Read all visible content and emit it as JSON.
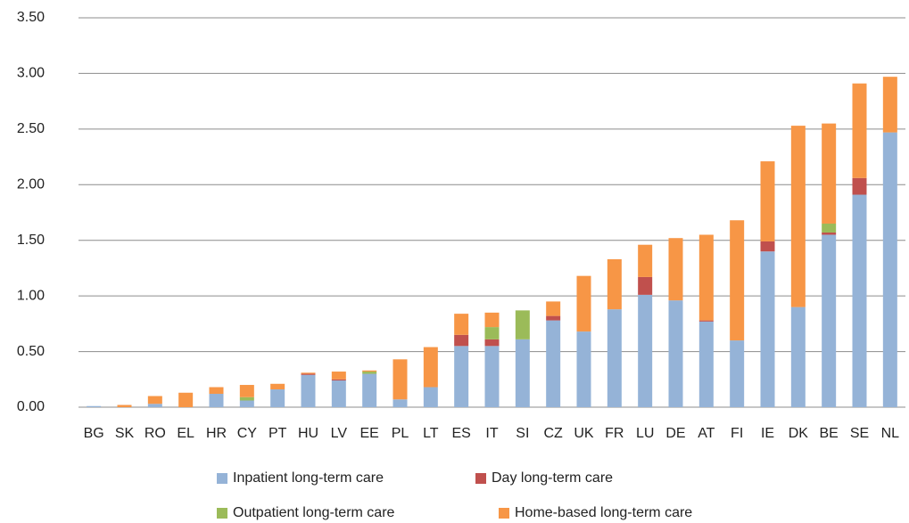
{
  "chart_data": {
    "type": "stacked_bar",
    "categories": [
      "BG",
      "SK",
      "RO",
      "EL",
      "HR",
      "CY",
      "PT",
      "HU",
      "LV",
      "EE",
      "PL",
      "LT",
      "ES",
      "IT",
      "SI",
      "CZ",
      "UK",
      "FR",
      "LU",
      "DE",
      "AT",
      "FI",
      "IE",
      "DK",
      "BE",
      "SE",
      "NL"
    ],
    "series": [
      {
        "name": "Inpatient long-term care",
        "color": "#95b3d7",
        "values": [
          0.01,
          0,
          0.03,
          0,
          0.12,
          0.06,
          0.16,
          0.29,
          0.24,
          0.3,
          0.07,
          0.18,
          0.55,
          0.55,
          0.61,
          0.78,
          0.68,
          0.88,
          1.01,
          0.96,
          0.77,
          0.6,
          1.4,
          0.9,
          1.55,
          1.91,
          2.47
        ]
      },
      {
        "name": "Day long-term care",
        "color": "#c0504d",
        "values": [
          0,
          0,
          0,
          0,
          0,
          0,
          0,
          0.01,
          0.01,
          0,
          0,
          0,
          0.1,
          0.06,
          0,
          0.04,
          0,
          0,
          0.16,
          0,
          0.01,
          0,
          0.09,
          0,
          0.02,
          0.15,
          0
        ]
      },
      {
        "name": "Outpatient long-term care",
        "color": "#9bbb59",
        "values": [
          0,
          0,
          0,
          0,
          0,
          0.03,
          0,
          0,
          0,
          0.02,
          0,
          0,
          0,
          0.11,
          0.26,
          0,
          0,
          0,
          0,
          0,
          0,
          0,
          0,
          0,
          0.08,
          0,
          0
        ]
      },
      {
        "name": "Home-based long-term care",
        "color": "#f79646",
        "values": [
          0,
          0.02,
          0.07,
          0.13,
          0.06,
          0.11,
          0.05,
          0.01,
          0.07,
          0.01,
          0.36,
          0.36,
          0.19,
          0.13,
          0,
          0.13,
          0.5,
          0.45,
          0.29,
          0.56,
          0.77,
          1.08,
          0.72,
          1.63,
          0.9,
          0.85,
          0.5
        ]
      }
    ],
    "ylim": [
      0,
      3.5
    ],
    "yticks": [
      {
        "value": 0,
        "label": "0.00"
      },
      {
        "value": 0.5,
        "label": "0.50"
      },
      {
        "value": 1,
        "label": "1.00"
      },
      {
        "value": 1.5,
        "label": "1.50"
      },
      {
        "value": 2,
        "label": "2.00"
      },
      {
        "value": 2.5,
        "label": "2.50"
      },
      {
        "value": 3,
        "label": "3.00"
      },
      {
        "value": 3.5,
        "label": "3.50"
      }
    ],
    "grid": true,
    "legend": "bottom"
  }
}
